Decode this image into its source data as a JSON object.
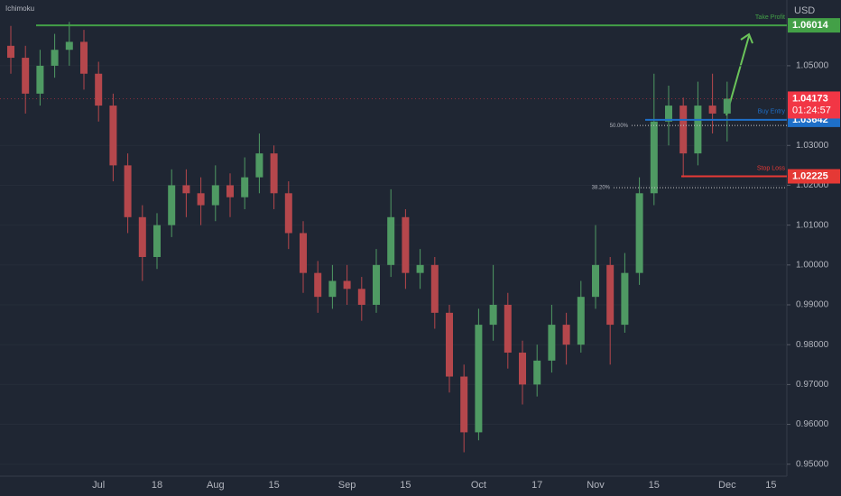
{
  "chart_data": {
    "type": "candlestick",
    "title": "Ichimoku",
    "y_axis_label": "USD",
    "categories": [
      null,
      null,
      null,
      null,
      null,
      null,
      "Jul",
      null,
      null,
      null,
      "18",
      null,
      null,
      null,
      "Aug",
      null,
      null,
      null,
      "15",
      null,
      null,
      null,
      null,
      "Sep",
      null,
      null,
      null,
      "15",
      null,
      null,
      null,
      null,
      "Oct",
      null,
      null,
      null,
      "17",
      null,
      null,
      null,
      "Nov",
      null,
      null,
      null,
      "15",
      null,
      null,
      null,
      null,
      "Dec",
      null,
      null,
      "15"
    ],
    "open": [
      1.055,
      1.052,
      1.043,
      1.05,
      1.054,
      1.056,
      1.048,
      1.04,
      1.025,
      1.012,
      1.002,
      1.01,
      1.02,
      1.018,
      1.015,
      1.02,
      1.017,
      1.022,
      1.028,
      1.018,
      1.008,
      0.998,
      0.992,
      0.996,
      0.994,
      0.99,
      1.0,
      1.012,
      0.998,
      1.0,
      0.988,
      0.972,
      0.958,
      0.985,
      0.99,
      0.978,
      0.97,
      0.976,
      0.985,
      0.98,
      0.992,
      1.0,
      0.985,
      0.998,
      1.018,
      1.036,
      1.04,
      1.028,
      1.04,
      1.038,
      null,
      null,
      null
    ],
    "high": [
      1.06,
      1.055,
      1.054,
      1.058,
      1.061,
      1.059,
      1.051,
      1.043,
      1.028,
      1.015,
      1.013,
      1.024,
      1.024,
      1.022,
      1.025,
      1.023,
      1.027,
      1.033,
      1.03,
      1.021,
      1.011,
      1.001,
      1.0,
      1.0,
      0.997,
      1.004,
      1.019,
      1.014,
      1.004,
      1.002,
      0.99,
      0.975,
      0.989,
      1.0,
      0.993,
      0.981,
      0.98,
      0.99,
      0.988,
      0.996,
      1.01,
      1.002,
      1.003,
      1.022,
      1.048,
      1.045,
      1.042,
      1.046,
      1.048,
      1.046,
      null,
      null,
      null
    ],
    "low": [
      1.048,
      1.038,
      1.04,
      1.047,
      1.05,
      1.044,
      1.036,
      1.021,
      1.008,
      0.996,
      0.999,
      1.007,
      1.012,
      1.01,
      1.011,
      1.012,
      1.014,
      1.018,
      1.014,
      1.004,
      0.993,
      0.988,
      0.989,
      0.99,
      0.986,
      0.988,
      0.997,
      0.994,
      0.994,
      0.984,
      0.968,
      0.953,
      0.956,
      0.981,
      0.974,
      0.965,
      0.967,
      0.973,
      0.975,
      0.978,
      0.989,
      0.975,
      0.983,
      0.995,
      1.015,
      1.03,
      1.022,
      1.025,
      1.033,
      1.031,
      null,
      null,
      null
    ],
    "close": [
      1.052,
      1.043,
      1.05,
      1.054,
      1.056,
      1.048,
      1.04,
      1.025,
      1.012,
      1.002,
      1.01,
      1.02,
      1.018,
      1.015,
      1.02,
      1.017,
      1.022,
      1.028,
      1.018,
      1.008,
      0.998,
      0.992,
      0.996,
      0.994,
      0.99,
      1.0,
      1.012,
      0.998,
      1.0,
      0.988,
      0.972,
      0.958,
      0.985,
      0.99,
      0.978,
      0.97,
      0.976,
      0.985,
      0.98,
      0.992,
      1.0,
      0.985,
      0.998,
      1.018,
      1.036,
      1.04,
      1.028,
      1.04,
      1.038,
      1.04173,
      null,
      null,
      null
    ],
    "up_color": "#4f9a63",
    "down_color": "#b5474c",
    "ylim": [
      0.947,
      1.0665
    ],
    "yticks": [
      {
        "value": 0.95,
        "label": "0.95000"
      },
      {
        "value": 0.96,
        "label": "0.96000"
      },
      {
        "value": 0.97,
        "label": "0.97000"
      },
      {
        "value": 0.98,
        "label": "0.98000"
      },
      {
        "value": 0.99,
        "label": "0.99000"
      },
      {
        "value": 1.0,
        "label": "1.00000"
      },
      {
        "value": 1.01,
        "label": "1.01000"
      },
      {
        "value": 1.02,
        "label": "1.02000"
      },
      {
        "value": 1.03,
        "label": "1.03000"
      },
      {
        "value": 1.05,
        "label": "1.05000"
      }
    ],
    "levels": [
      {
        "label": "Take Profit",
        "value": 1.06014,
        "color": "#43a047"
      },
      {
        "label": "Buy Entry",
        "value": 1.03642,
        "color": "#1e6fc8"
      },
      {
        "label": "Stop Loss",
        "value": 1.02225,
        "color": "#e53935"
      }
    ],
    "fib": [
      {
        "label": "50.00%",
        "value": 1.035
      },
      {
        "label": "38.20%",
        "value": 1.0194
      }
    ],
    "price": {
      "value": 1.04173,
      "time": "01:24:57",
      "color": "#f23645"
    }
  }
}
